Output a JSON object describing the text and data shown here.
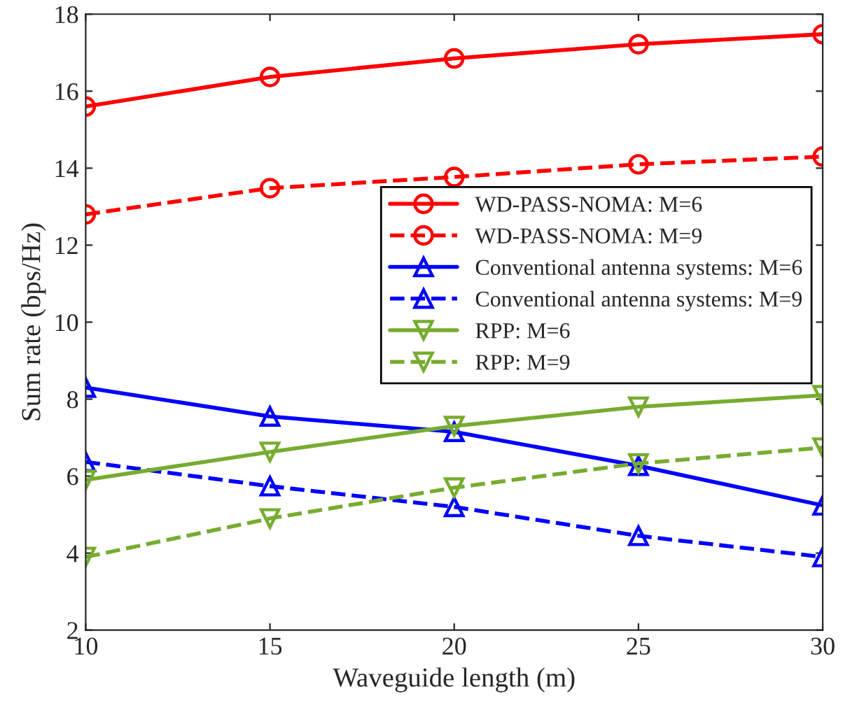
{
  "chart_data": {
    "type": "line",
    "xlabel": "Waveguide length (m)",
    "ylabel": "Sum rate (bps/Hz)",
    "x": [
      10,
      15,
      20,
      25,
      30
    ],
    "xlim": [
      10,
      30
    ],
    "xticks": [
      10,
      15,
      20,
      25,
      30
    ],
    "ylim": [
      2,
      18
    ],
    "yticks": [
      2,
      4,
      6,
      8,
      10,
      12,
      14,
      16,
      18
    ],
    "grid": false,
    "legend": "right",
    "series": [
      {
        "name": "WD-PASS-NOMA: M=6",
        "color": "#ff0000",
        "marker": "circle",
        "line_style": "solid",
        "values": [
          15.6,
          16.37,
          16.85,
          17.22,
          17.48
        ]
      },
      {
        "name": "WD-PASS-NOMA: M=9",
        "color": "#ff0000",
        "marker": "circle",
        "line_style": "dashed",
        "values": [
          12.8,
          13.48,
          13.77,
          14.1,
          14.3
        ]
      },
      {
        "name": "Conventional antenna systems: M=6",
        "color": "#0000ff",
        "marker": "triangle",
        "line_style": "solid",
        "values": [
          8.3,
          7.55,
          7.15,
          6.27,
          5.24
        ]
      },
      {
        "name": "Conventional antenna systems: M=9",
        "color": "#0000ff",
        "marker": "triangle",
        "line_style": "dashed",
        "values": [
          6.37,
          5.74,
          5.2,
          4.45,
          3.9
        ]
      },
      {
        "name": "RPP: M=6",
        "color": "#77ac30",
        "marker": "triangle_down",
        "line_style": "solid",
        "values": [
          5.9,
          6.63,
          7.3,
          7.8,
          8.1
        ]
      },
      {
        "name": "RPP: M=9",
        "color": "#77ac30",
        "marker": "triangle_down",
        "line_style": "dashed",
        "values": [
          3.9,
          4.9,
          5.7,
          6.33,
          6.74
        ]
      }
    ]
  }
}
